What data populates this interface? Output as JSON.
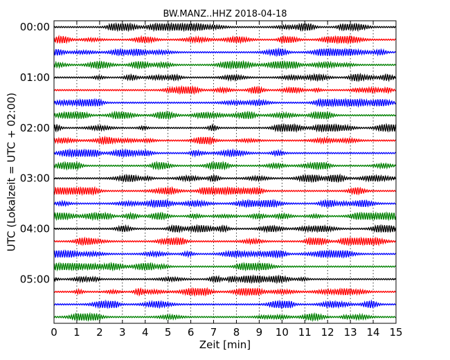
{
  "chart_data": {
    "type": "line",
    "title": "BW.MANZ..HHZ 2018-04-18",
    "xlabel": "Zeit  [min]",
    "ylabel": "UTC (Lokalzeit = UTC + 02:00)",
    "xlim": [
      0,
      15
    ],
    "xticks": [
      "0",
      "1",
      "2",
      "3",
      "4",
      "5",
      "6",
      "7",
      "8",
      "9",
      "10",
      "11",
      "12",
      "13",
      "14",
      "15"
    ],
    "yticks": [
      "00:00",
      "01:00",
      "02:00",
      "03:00",
      "04:00",
      "05:00"
    ],
    "trace_count": 24,
    "trace_interval_minutes": 15,
    "trace_colors": [
      "#000000",
      "#ff0000",
      "#0000ff",
      "#008000"
    ],
    "grid": "vertical dotted lines at each minute",
    "legend": "none"
  }
}
